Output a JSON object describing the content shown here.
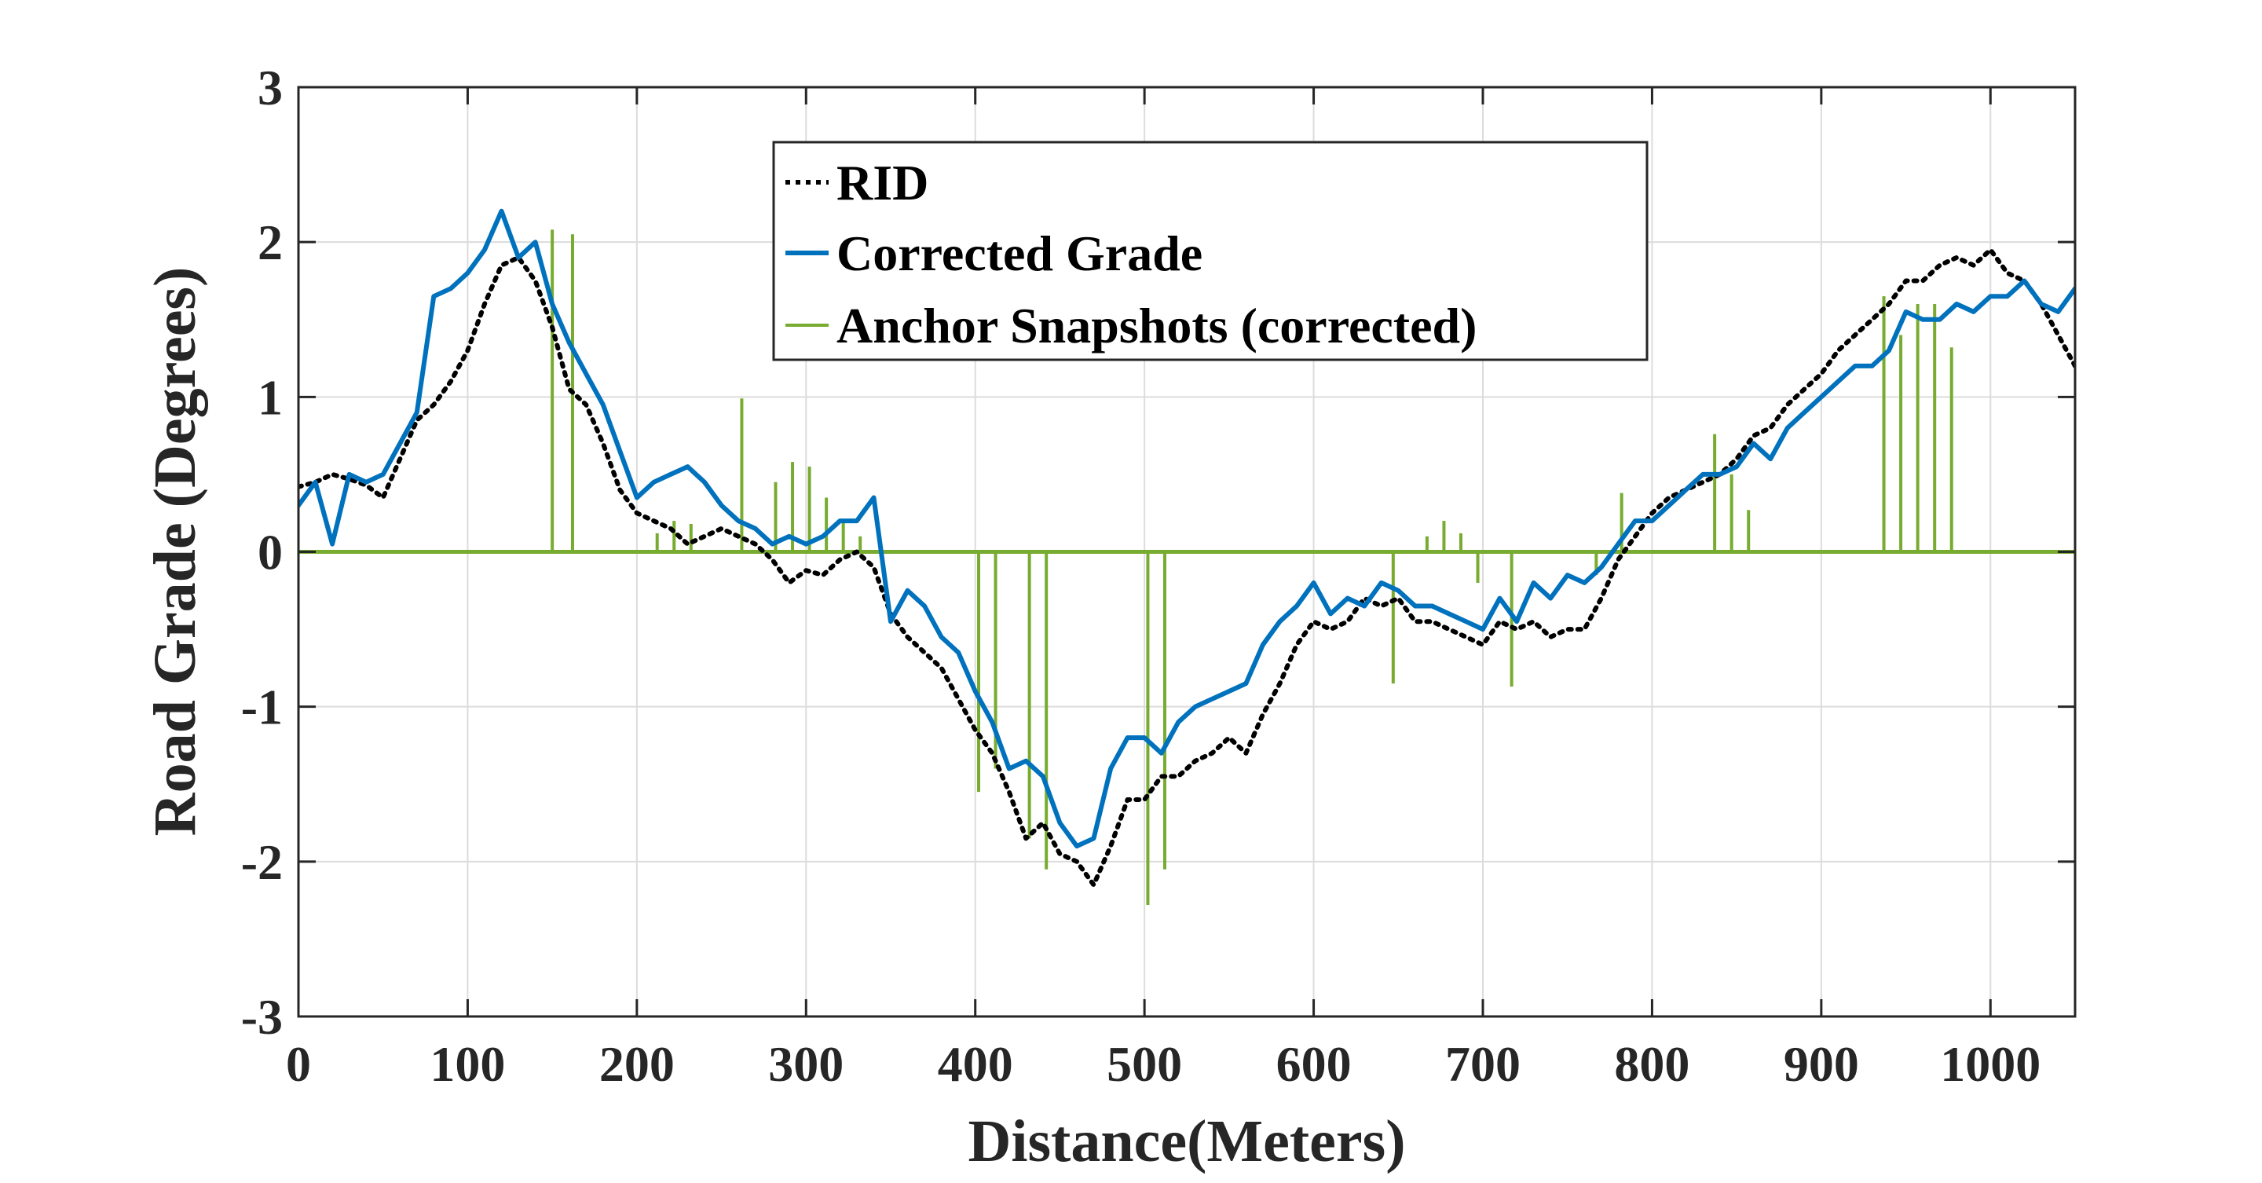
{
  "chart_data": {
    "type": "line",
    "xlabel": "Distance(Meters)",
    "ylabel": "Road Grade (Degrees)",
    "xlim": [
      0,
      1050
    ],
    "ylim": [
      -3,
      3
    ],
    "x_ticks": [
      0,
      100,
      200,
      300,
      400,
      500,
      600,
      700,
      800,
      900,
      1000
    ],
    "y_ticks": [
      -3,
      -2,
      -1,
      0,
      1,
      2,
      3
    ],
    "x_tick_labels": [
      "0",
      "100",
      "200",
      "300",
      "400",
      "500",
      "600",
      "700",
      "800",
      "900",
      "1000"
    ],
    "y_tick_labels": [
      "-3",
      "-2",
      "-1",
      "0",
      "1",
      "2",
      "3"
    ],
    "grid": true,
    "legend_position": "top-center",
    "series": [
      {
        "name": "RID",
        "style": "dotted",
        "color": "#000000",
        "x": [
          0,
          10,
          20,
          30,
          40,
          50,
          60,
          70,
          80,
          90,
          100,
          110,
          120,
          130,
          140,
          150,
          160,
          170,
          180,
          190,
          200,
          210,
          220,
          230,
          240,
          250,
          260,
          270,
          280,
          290,
          300,
          310,
          320,
          330,
          340,
          350,
          360,
          370,
          380,
          390,
          400,
          410,
          420,
          430,
          440,
          450,
          460,
          470,
          480,
          490,
          500,
          510,
          520,
          530,
          540,
          550,
          560,
          570,
          580,
          590,
          600,
          610,
          620,
          630,
          640,
          650,
          660,
          670,
          680,
          690,
          700,
          710,
          720,
          730,
          740,
          750,
          760,
          770,
          780,
          790,
          800,
          810,
          820,
          830,
          840,
          850,
          860,
          870,
          880,
          890,
          900,
          910,
          920,
          930,
          940,
          950,
          960,
          970,
          980,
          990,
          1000,
          1010,
          1020,
          1030,
          1040,
          1050
        ],
        "y": [
          0.42,
          0.45,
          0.5,
          0.47,
          0.43,
          0.35,
          0.6,
          0.85,
          0.95,
          1.1,
          1.3,
          1.6,
          1.85,
          1.9,
          1.75,
          1.45,
          1.05,
          0.95,
          0.7,
          0.4,
          0.25,
          0.2,
          0.15,
          0.05,
          0.1,
          0.15,
          0.1,
          0.05,
          -0.05,
          -0.2,
          -0.12,
          -0.15,
          -0.05,
          0.0,
          -0.1,
          -0.4,
          -0.55,
          -0.65,
          -0.75,
          -0.95,
          -1.15,
          -1.3,
          -1.55,
          -1.85,
          -1.75,
          -1.95,
          -2.0,
          -2.15,
          -1.9,
          -1.6,
          -1.6,
          -1.45,
          -1.45,
          -1.35,
          -1.3,
          -1.2,
          -1.3,
          -1.05,
          -0.85,
          -0.6,
          -0.45,
          -0.5,
          -0.45,
          -0.3,
          -0.35,
          -0.3,
          -0.45,
          -0.45,
          -0.5,
          -0.55,
          -0.6,
          -0.45,
          -0.5,
          -0.45,
          -0.55,
          -0.5,
          -0.5,
          -0.3,
          -0.05,
          0.1,
          0.25,
          0.35,
          0.4,
          0.45,
          0.5,
          0.6,
          0.75,
          0.8,
          0.95,
          1.05,
          1.15,
          1.3,
          1.4,
          1.5,
          1.6,
          1.75,
          1.75,
          1.85,
          1.9,
          1.85,
          1.95,
          1.8,
          1.75,
          1.6,
          1.4,
          1.2
        ]
      },
      {
        "name": "Corrected Grade",
        "style": "solid",
        "color": "#0072BD",
        "x": [
          0,
          10,
          20,
          30,
          40,
          50,
          60,
          70,
          80,
          90,
          100,
          110,
          120,
          130,
          140,
          150,
          160,
          170,
          180,
          190,
          200,
          210,
          220,
          230,
          240,
          250,
          260,
          270,
          280,
          290,
          300,
          310,
          320,
          330,
          340,
          350,
          360,
          370,
          380,
          390,
          400,
          410,
          420,
          430,
          440,
          450,
          460,
          470,
          480,
          490,
          500,
          510,
          520,
          530,
          540,
          550,
          560,
          570,
          580,
          590,
          600,
          610,
          620,
          630,
          640,
          650,
          660,
          670,
          680,
          690,
          700,
          710,
          720,
          730,
          740,
          750,
          760,
          770,
          780,
          790,
          800,
          810,
          820,
          830,
          840,
          850,
          860,
          870,
          880,
          890,
          900,
          910,
          920,
          930,
          940,
          950,
          960,
          970,
          980,
          990,
          1000,
          1010,
          1020,
          1030,
          1040,
          1050
        ],
        "y": [
          0.3,
          0.45,
          0.05,
          0.5,
          0.45,
          0.5,
          0.7,
          0.9,
          1.65,
          1.7,
          1.8,
          1.95,
          2.2,
          1.9,
          2.0,
          1.6,
          1.35,
          1.15,
          0.95,
          0.65,
          0.35,
          0.45,
          0.5,
          0.55,
          0.45,
          0.3,
          0.2,
          0.15,
          0.05,
          0.1,
          0.05,
          0.1,
          0.2,
          0.2,
          0.35,
          -0.45,
          -0.25,
          -0.35,
          -0.55,
          -0.65,
          -0.9,
          -1.1,
          -1.4,
          -1.35,
          -1.45,
          -1.75,
          -1.9,
          -1.85,
          -1.4,
          -1.2,
          -1.2,
          -1.3,
          -1.1,
          -1.0,
          -0.95,
          -0.9,
          -0.85,
          -0.6,
          -0.45,
          -0.35,
          -0.2,
          -0.4,
          -0.3,
          -0.35,
          -0.2,
          -0.25,
          -0.35,
          -0.35,
          -0.4,
          -0.45,
          -0.5,
          -0.3,
          -0.45,
          -0.2,
          -0.3,
          -0.15,
          -0.2,
          -0.1,
          0.05,
          0.2,
          0.2,
          0.3,
          0.4,
          0.5,
          0.5,
          0.55,
          0.7,
          0.6,
          0.8,
          0.9,
          1.0,
          1.1,
          1.2,
          1.2,
          1.3,
          1.55,
          1.5,
          1.5,
          1.6,
          1.55,
          1.65,
          1.65,
          1.75,
          1.6,
          1.55,
          1.7
        ]
      },
      {
        "name": "Anchor Snapshots (corrected)",
        "style": "stem",
        "color": "#77AC30",
        "x": [
          150,
          162,
          212,
          222,
          232,
          262,
          282,
          292,
          302,
          312,
          322,
          332,
          402,
          412,
          432,
          442,
          502,
          512,
          647,
          667,
          677,
          687,
          697,
          717,
          767,
          782,
          837,
          847,
          857,
          937,
          947,
          957,
          967,
          977
        ],
        "y": [
          2.08,
          2.05,
          0.12,
          0.2,
          0.18,
          0.99,
          0.45,
          0.58,
          0.55,
          0.35,
          0.2,
          0.1,
          -1.55,
          -1.4,
          -1.85,
          -2.05,
          -2.28,
          -2.05,
          -0.85,
          0.1,
          0.2,
          0.12,
          -0.2,
          -0.87,
          -0.15,
          0.38,
          0.76,
          0.5,
          0.27,
          1.65,
          1.4,
          1.6,
          1.6,
          1.32
        ]
      }
    ]
  },
  "legend": {
    "items": [
      "RID",
      "Corrected Grade",
      "Anchor Snapshots (corrected)"
    ]
  }
}
